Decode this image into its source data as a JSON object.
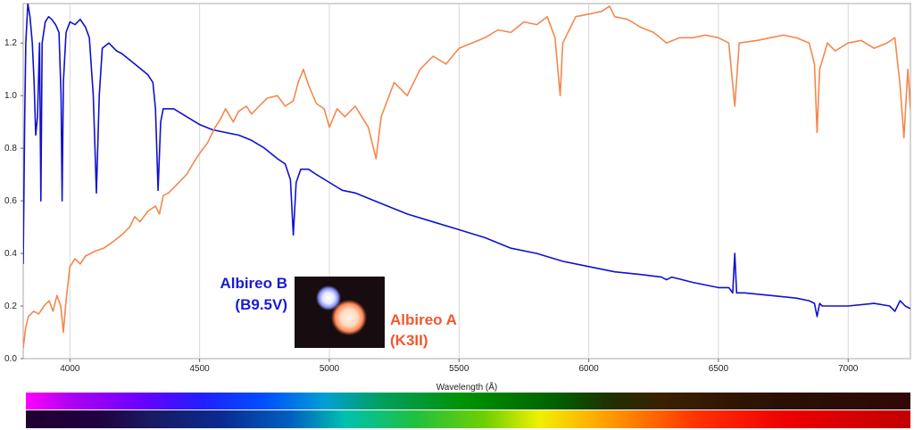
{
  "chart_data": {
    "type": "line",
    "xlabel": "Wavelength (Å)",
    "ylabel": "",
    "xlim": [
      3820,
      7240
    ],
    "ylim": [
      0.0,
      1.35
    ],
    "x_ticks": [
      4000,
      4500,
      5000,
      5500,
      6000,
      6500,
      7000
    ],
    "y_ticks": [
      0.0,
      0.2,
      0.4,
      0.6,
      0.8,
      1.0,
      1.2
    ],
    "x_tick_labels": [
      "4000",
      "4500",
      "5000",
      "5500",
      "6000",
      "6500",
      "7000"
    ],
    "y_tick_labels": [
      "0.0",
      "0.2",
      "0.4",
      "0.6",
      "0.8",
      "1.0",
      "1.2"
    ],
    "grid": "vertical",
    "series": [
      {
        "name": "Albireo B",
        "color": "#1010d0",
        "points": [
          [
            3820,
            0.36
          ],
          [
            3826,
            0.92
          ],
          [
            3830,
            1.2
          ],
          [
            3838,
            1.35
          ],
          [
            3846,
            1.3
          ],
          [
            3855,
            1.2
          ],
          [
            3862,
            1.05
          ],
          [
            3868,
            0.85
          ],
          [
            3875,
            0.92
          ],
          [
            3883,
            1.2
          ],
          [
            3888,
            0.6
          ],
          [
            3893,
            1.2
          ],
          [
            3905,
            1.28
          ],
          [
            3918,
            1.3
          ],
          [
            3930,
            1.29
          ],
          [
            3945,
            1.27
          ],
          [
            3958,
            1.24
          ],
          [
            3966,
            1.0
          ],
          [
            3970,
            0.6
          ],
          [
            3975,
            1.05
          ],
          [
            3985,
            1.24
          ],
          [
            4000,
            1.28
          ],
          [
            4020,
            1.27
          ],
          [
            4040,
            1.29
          ],
          [
            4060,
            1.26
          ],
          [
            4075,
            1.22
          ],
          [
            4090,
            1.0
          ],
          [
            4102,
            0.63
          ],
          [
            4113,
            1.0
          ],
          [
            4125,
            1.18
          ],
          [
            4150,
            1.2
          ],
          [
            4180,
            1.17
          ],
          [
            4200,
            1.16
          ],
          [
            4250,
            1.12
          ],
          [
            4300,
            1.08
          ],
          [
            4320,
            1.05
          ],
          [
            4330,
            0.95
          ],
          [
            4340,
            0.64
          ],
          [
            4350,
            0.9
          ],
          [
            4360,
            0.95
          ],
          [
            4400,
            0.95
          ],
          [
            4450,
            0.92
          ],
          [
            4500,
            0.89
          ],
          [
            4550,
            0.87
          ],
          [
            4600,
            0.86
          ],
          [
            4650,
            0.85
          ],
          [
            4700,
            0.83
          ],
          [
            4750,
            0.8
          ],
          [
            4800,
            0.76
          ],
          [
            4830,
            0.74
          ],
          [
            4850,
            0.68
          ],
          [
            4861,
            0.47
          ],
          [
            4872,
            0.67
          ],
          [
            4890,
            0.72
          ],
          [
            4920,
            0.72
          ],
          [
            4950,
            0.7
          ],
          [
            5000,
            0.67
          ],
          [
            5050,
            0.64
          ],
          [
            5100,
            0.63
          ],
          [
            5150,
            0.61
          ],
          [
            5200,
            0.59
          ],
          [
            5250,
            0.57
          ],
          [
            5300,
            0.55
          ],
          [
            5400,
            0.52
          ],
          [
            5500,
            0.49
          ],
          [
            5600,
            0.46
          ],
          [
            5700,
            0.42
          ],
          [
            5800,
            0.4
          ],
          [
            5900,
            0.37
          ],
          [
            6000,
            0.35
          ],
          [
            6100,
            0.33
          ],
          [
            6200,
            0.32
          ],
          [
            6280,
            0.31
          ],
          [
            6300,
            0.3
          ],
          [
            6320,
            0.31
          ],
          [
            6400,
            0.29
          ],
          [
            6500,
            0.27
          ],
          [
            6540,
            0.27
          ],
          [
            6555,
            0.25
          ],
          [
            6563,
            0.4
          ],
          [
            6570,
            0.25
          ],
          [
            6600,
            0.25
          ],
          [
            6700,
            0.24
          ],
          [
            6800,
            0.23
          ],
          [
            6850,
            0.22
          ],
          [
            6870,
            0.21
          ],
          [
            6880,
            0.16
          ],
          [
            6890,
            0.21
          ],
          [
            6900,
            0.2
          ],
          [
            7000,
            0.2
          ],
          [
            7100,
            0.21
          ],
          [
            7160,
            0.2
          ],
          [
            7180,
            0.18
          ],
          [
            7200,
            0.22
          ],
          [
            7220,
            0.2
          ],
          [
            7240,
            0.19
          ]
        ]
      },
      {
        "name": "Albireo A",
        "color": "#f4874c",
        "points": [
          [
            3820,
            0.04
          ],
          [
            3830,
            0.12
          ],
          [
            3840,
            0.16
          ],
          [
            3860,
            0.18
          ],
          [
            3880,
            0.17
          ],
          [
            3900,
            0.2
          ],
          [
            3920,
            0.22
          ],
          [
            3935,
            0.18
          ],
          [
            3950,
            0.24
          ],
          [
            3965,
            0.2
          ],
          [
            3975,
            0.1
          ],
          [
            3985,
            0.22
          ],
          [
            4000,
            0.35
          ],
          [
            4020,
            0.38
          ],
          [
            4040,
            0.36
          ],
          [
            4060,
            0.39
          ],
          [
            4080,
            0.4
          ],
          [
            4100,
            0.41
          ],
          [
            4130,
            0.42
          ],
          [
            4160,
            0.44
          ],
          [
            4200,
            0.47
          ],
          [
            4230,
            0.5
          ],
          [
            4250,
            0.54
          ],
          [
            4270,
            0.52
          ],
          [
            4300,
            0.56
          ],
          [
            4330,
            0.58
          ],
          [
            4345,
            0.55
          ],
          [
            4360,
            0.62
          ],
          [
            4380,
            0.63
          ],
          [
            4400,
            0.65
          ],
          [
            4420,
            0.67
          ],
          [
            4450,
            0.7
          ],
          [
            4480,
            0.75
          ],
          [
            4500,
            0.78
          ],
          [
            4530,
            0.82
          ],
          [
            4560,
            0.88
          ],
          [
            4580,
            0.91
          ],
          [
            4600,
            0.95
          ],
          [
            4630,
            0.9
          ],
          [
            4650,
            0.94
          ],
          [
            4680,
            0.96
          ],
          [
            4700,
            0.93
          ],
          [
            4730,
            0.96
          ],
          [
            4760,
            0.99
          ],
          [
            4800,
            1.0
          ],
          [
            4830,
            0.96
          ],
          [
            4861,
            0.98
          ],
          [
            4880,
            1.05
          ],
          [
            4900,
            1.1
          ],
          [
            4920,
            1.04
          ],
          [
            4950,
            0.97
          ],
          [
            4980,
            0.95
          ],
          [
            5000,
            0.88
          ],
          [
            5030,
            0.95
          ],
          [
            5060,
            0.92
          ],
          [
            5100,
            0.96
          ],
          [
            5150,
            0.88
          ],
          [
            5180,
            0.76
          ],
          [
            5200,
            0.92
          ],
          [
            5250,
            1.05
          ],
          [
            5300,
            1.0
          ],
          [
            5350,
            1.1
          ],
          [
            5400,
            1.15
          ],
          [
            5450,
            1.12
          ],
          [
            5500,
            1.18
          ],
          [
            5550,
            1.2
          ],
          [
            5600,
            1.22
          ],
          [
            5650,
            1.25
          ],
          [
            5700,
            1.24
          ],
          [
            5750,
            1.28
          ],
          [
            5800,
            1.27
          ],
          [
            5840,
            1.3
          ],
          [
            5870,
            1.22
          ],
          [
            5890,
            1.0
          ],
          [
            5900,
            1.2
          ],
          [
            5950,
            1.3
          ],
          [
            6000,
            1.31
          ],
          [
            6050,
            1.32
          ],
          [
            6080,
            1.34
          ],
          [
            6100,
            1.3
          ],
          [
            6150,
            1.29
          ],
          [
            6200,
            1.26
          ],
          [
            6250,
            1.24
          ],
          [
            6300,
            1.2
          ],
          [
            6350,
            1.22
          ],
          [
            6400,
            1.22
          ],
          [
            6450,
            1.23
          ],
          [
            6500,
            1.22
          ],
          [
            6540,
            1.2
          ],
          [
            6563,
            0.96
          ],
          [
            6580,
            1.2
          ],
          [
            6650,
            1.21
          ],
          [
            6700,
            1.22
          ],
          [
            6750,
            1.23
          ],
          [
            6800,
            1.22
          ],
          [
            6850,
            1.2
          ],
          [
            6870,
            1.12
          ],
          [
            6880,
            0.86
          ],
          [
            6890,
            1.1
          ],
          [
            6920,
            1.2
          ],
          [
            6950,
            1.17
          ],
          [
            7000,
            1.2
          ],
          [
            7050,
            1.21
          ],
          [
            7100,
            1.18
          ],
          [
            7150,
            1.2
          ],
          [
            7180,
            1.22
          ],
          [
            7200,
            1.04
          ],
          [
            7215,
            0.84
          ],
          [
            7230,
            1.1
          ],
          [
            7240,
            0.95
          ]
        ]
      }
    ],
    "labels": {
      "b_name": "Albireo B",
      "b_type": "(B9.5V)",
      "a_name": "Albireo A",
      "a_type": "(K3II)"
    },
    "label_colors": {
      "b": "#1a1ad2",
      "a": "#f0582e"
    },
    "inset_image": "photograph of the Albireo double star: a small blue-white star and a larger orange star on a dark background",
    "spectrum_bar": "color spectrum strips from violet (left) to red (right) beneath the x axis"
  }
}
